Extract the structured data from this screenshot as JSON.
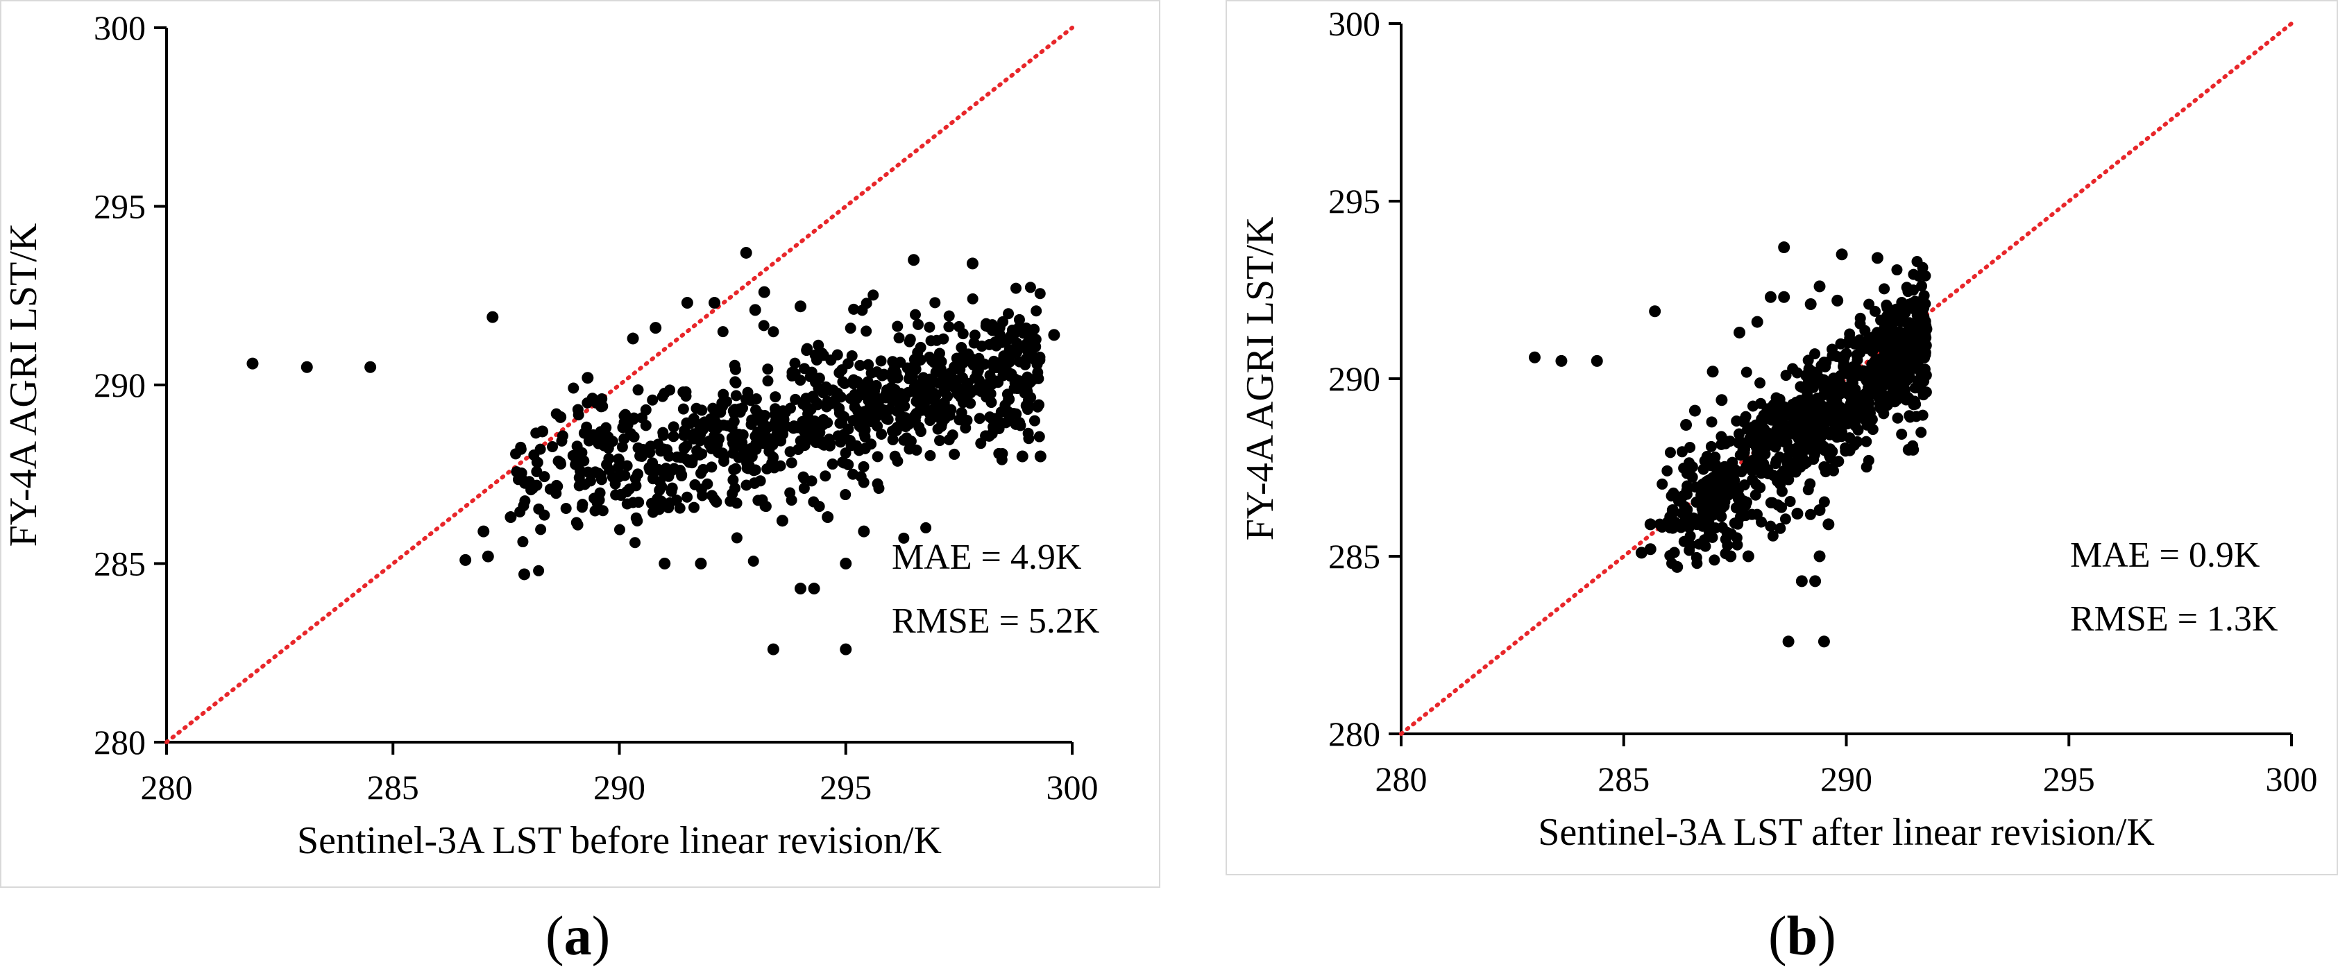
{
  "chart_data": [
    {
      "panel_id": "a",
      "type": "scatter",
      "title": "",
      "xlabel": "Sentinel-3A LST before linear revision/K",
      "ylabel": "FY-4A AGRI LST/K",
      "xlim": [
        280,
        300
      ],
      "ylim": [
        280,
        300
      ],
      "xticks": [
        280,
        285,
        290,
        295,
        300
      ],
      "yticks": [
        280,
        285,
        290,
        295,
        300
      ],
      "reference_line": {
        "type": "1:1",
        "from": [
          280,
          280
        ],
        "to": [
          300,
          300
        ],
        "color": "#e8262a",
        "style": "dotted"
      },
      "annotations": [
        "MAE = 4.9K",
        "RMSE = 5.2K"
      ],
      "cluster": {
        "center": [
          292.5,
          288.6
        ],
        "n": 900,
        "slope": 0.29,
        "x_range": [
          287.5,
          299.3
        ],
        "spread": 0.95
      },
      "series": [
        {
          "name": "samples",
          "marker_color": "#000000",
          "points": [
            [
              281.9,
              290.6
            ],
            [
              283.1,
              290.5
            ],
            [
              284.5,
              290.5
            ],
            [
              287.2,
              291.9
            ],
            [
              292.8,
              293.7
            ],
            [
              286.6,
              285.1
            ],
            [
              287.0,
              285.9
            ],
            [
              287.1,
              285.2
            ],
            [
              287.9,
              284.7
            ],
            [
              287.6,
              286.3
            ],
            [
              288.3,
              288.7
            ],
            [
              288.7,
              289.1
            ],
            [
              289.3,
              290.2
            ],
            [
              289.6,
              289.4
            ],
            [
              290.3,
              291.3
            ],
            [
              290.8,
              291.6
            ],
            [
              291.5,
              292.3
            ],
            [
              292.1,
              292.3
            ],
            [
              293.0,
              292.1
            ],
            [
              293.2,
              292.6
            ],
            [
              294.0,
              292.2
            ],
            [
              296.5,
              293.5
            ],
            [
              297.8,
              293.4
            ],
            [
              299.6,
              291.4
            ],
            [
              299.3,
              288.0
            ],
            [
              298.9,
              288.0
            ],
            [
              298.6,
              289.6
            ],
            [
              293.4,
              282.6
            ],
            [
              295.0,
              282.6
            ],
            [
              294.0,
              284.3
            ],
            [
              294.3,
              284.3
            ],
            [
              295.4,
              285.9
            ],
            [
              295.0,
              285.0
            ],
            [
              291.0,
              285.0
            ],
            [
              291.8,
              285.0
            ],
            [
              294.6,
              286.3
            ],
            [
              293.6,
              286.2
            ]
          ]
        }
      ]
    },
    {
      "panel_id": "b",
      "type": "scatter",
      "title": "",
      "xlabel": "Sentinel-3A LST after linear revision/K",
      "ylabel": "FY-4A AGRI LST/K",
      "xlim": [
        280,
        300
      ],
      "ylim": [
        280,
        300
      ],
      "xticks": [
        280,
        285,
        290,
        295,
        300
      ],
      "yticks": [
        280,
        285,
        290,
        295,
        300
      ],
      "reference_line": {
        "type": "1:1",
        "from": [
          280,
          280
        ],
        "to": [
          300,
          300
        ],
        "color": "#e8262a",
        "style": "dotted"
      },
      "annotations": [
        "MAE = 0.9K",
        "RMSE = 1.3K"
      ],
      "cluster": {
        "center": [
          289.0,
          288.6
        ],
        "n": 900,
        "slope": 0.9,
        "x_range": [
          285.8,
          291.8
        ],
        "spread": 0.9
      },
      "series": [
        {
          "name": "samples",
          "marker_color": "#000000",
          "points": [
            [
              283.0,
              290.6
            ],
            [
              283.6,
              290.5
            ],
            [
              284.4,
              290.5
            ],
            [
              285.7,
              291.9
            ],
            [
              288.6,
              293.7
            ],
            [
              285.4,
              285.1
            ],
            [
              285.6,
              285.9
            ],
            [
              285.6,
              285.2
            ],
            [
              286.2,
              284.7
            ],
            [
              286.1,
              286.3
            ],
            [
              286.4,
              288.7
            ],
            [
              286.6,
              289.1
            ],
            [
              287.0,
              290.2
            ],
            [
              287.2,
              289.4
            ],
            [
              287.6,
              291.3
            ],
            [
              288.0,
              291.6
            ],
            [
              288.3,
              292.3
            ],
            [
              288.6,
              292.3
            ],
            [
              289.2,
              292.1
            ],
            [
              289.4,
              292.6
            ],
            [
              289.8,
              292.2
            ],
            [
              289.9,
              293.5
            ],
            [
              290.7,
              293.4
            ],
            [
              291.8,
              291.4
            ],
            [
              291.5,
              288.0
            ],
            [
              291.4,
              288.0
            ],
            [
              291.3,
              289.6
            ],
            [
              288.7,
              282.6
            ],
            [
              289.5,
              282.6
            ],
            [
              289.0,
              284.3
            ],
            [
              289.3,
              284.3
            ],
            [
              289.6,
              285.9
            ],
            [
              289.4,
              285.0
            ],
            [
              287.4,
              285.0
            ],
            [
              287.8,
              285.0
            ],
            [
              289.4,
              286.3
            ],
            [
              288.9,
              286.2
            ]
          ]
        }
      ]
    }
  ],
  "captions": {
    "a": {
      "open": "(",
      "label": "a",
      "close": ")"
    },
    "b": {
      "open": "(",
      "label": "b",
      "close": ")"
    }
  }
}
